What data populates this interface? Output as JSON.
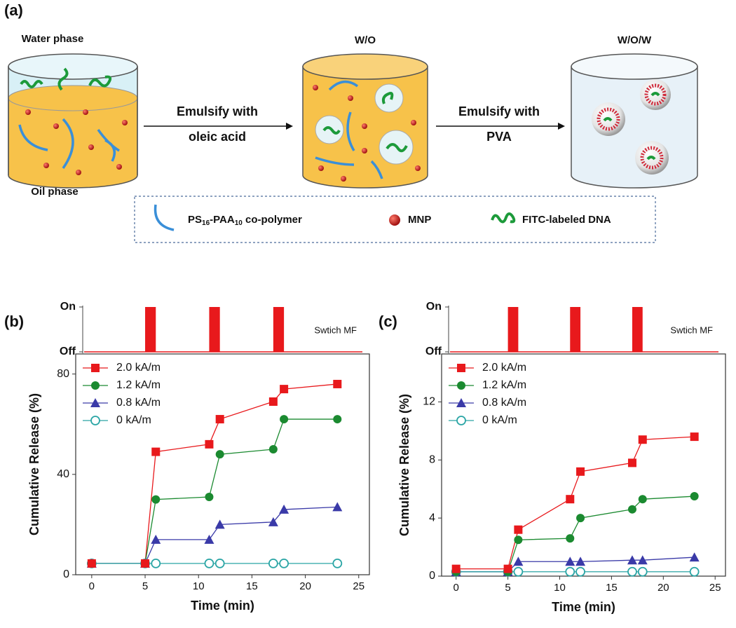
{
  "diagram": {
    "panel": "(a)",
    "stages": [
      "Water phase",
      "W/O",
      "W/O/W"
    ],
    "bottom_label": "Oil phase",
    "arrows": [
      [
        "Emulsify with",
        "oleic acid"
      ],
      [
        "Emulsify with",
        "PVA"
      ]
    ],
    "legend": {
      "polymer": [
        "PS",
        "16",
        "-PAA",
        "10",
        " co-polymer"
      ],
      "mnp": "MNP",
      "dna": "FITC-labeled DNA"
    }
  },
  "chart_data": [
    {
      "type": "line",
      "panel": "(b)",
      "xlabel": "Time (min)",
      "ylabel": "Cumulative Release (%)",
      "x": [
        0,
        5,
        6,
        11,
        12,
        17,
        18,
        23
      ],
      "xlim": [
        -1.5,
        26
      ],
      "xticks": [
        0,
        5,
        10,
        15,
        20,
        25
      ],
      "ylim": [
        0,
        88
      ],
      "yticks": [
        0,
        40,
        80
      ],
      "legend": "upper left",
      "series": [
        {
          "name": "2.0 kA/m",
          "color": "#e8191c",
          "marker": "square",
          "values": [
            4.5,
            4.5,
            49,
            52,
            62,
            69,
            74,
            76
          ]
        },
        {
          "name": "1.2 kA/m",
          "color": "#1b8a30",
          "marker": "circle",
          "values": [
            4.5,
            4.5,
            30,
            31,
            48,
            50,
            62,
            62
          ]
        },
        {
          "name": "0.8 kA/m",
          "color": "#3a3aa8",
          "marker": "triangle",
          "values": [
            4.5,
            4.5,
            14,
            14,
            20,
            21,
            26,
            27
          ]
        },
        {
          "name": "0 kA/m",
          "color": "#2aa5a5",
          "marker": "open-circle",
          "values": [
            4.5,
            4.5,
            4.5,
            4.5,
            4.5,
            4.5,
            4.5,
            4.5
          ]
        }
      ],
      "switch_label": "Swtich MF",
      "switch_yticks": [
        {
          "value": 1,
          "label": "On"
        },
        {
          "value": 0,
          "label": "Off"
        }
      ],
      "switch_color": "#e8191c",
      "pulses": [
        [
          5,
          6
        ],
        [
          11,
          12
        ],
        [
          17,
          18
        ]
      ]
    },
    {
      "type": "line",
      "panel": "(c)",
      "xlabel": "Time (min)",
      "ylabel": "Cumulative Release (%)",
      "x": [
        0,
        5,
        6,
        11,
        12,
        17,
        18,
        23
      ],
      "xlim": [
        -1.4,
        26
      ],
      "xticks": [
        0,
        5,
        10,
        15,
        20,
        25
      ],
      "ylim": [
        0,
        15.3
      ],
      "yticks": [
        0,
        4,
        8,
        12
      ],
      "legend": "upper left",
      "series": [
        {
          "name": "2.0 kA/m",
          "color": "#e8191c",
          "marker": "square",
          "values": [
            0.5,
            0.5,
            3.2,
            5.3,
            7.2,
            7.8,
            9.4,
            9.6
          ]
        },
        {
          "name": "1.2 kA/m",
          "color": "#1b8a30",
          "marker": "circle",
          "values": [
            0.3,
            0.3,
            2.5,
            2.6,
            4.0,
            4.6,
            5.3,
            5.5
          ]
        },
        {
          "name": "0.8 kA/m",
          "color": "#3a3aa8",
          "marker": "triangle",
          "values": [
            0.3,
            0.3,
            1.0,
            1.0,
            1.0,
            1.1,
            1.1,
            1.3
          ]
        },
        {
          "name": "0 kA/m",
          "color": "#2aa5a5",
          "marker": "open-circle",
          "values": [
            0.3,
            0.3,
            0.3,
            0.3,
            0.3,
            0.3,
            0.3,
            0.3
          ]
        }
      ],
      "switch_label": "Swtich MF",
      "switch_yticks": [
        {
          "value": 1,
          "label": "On"
        },
        {
          "value": 0,
          "label": "Off"
        }
      ],
      "switch_color": "#e8191c",
      "pulses": [
        [
          5,
          6
        ],
        [
          11,
          12
        ],
        [
          17,
          18
        ]
      ]
    }
  ]
}
